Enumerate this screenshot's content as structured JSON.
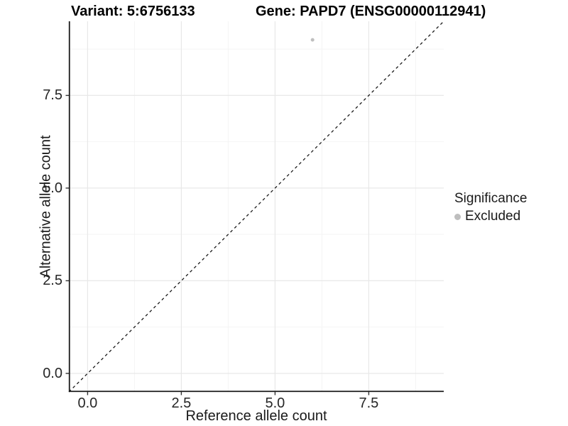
{
  "chart_data": {
    "type": "scatter",
    "title_left": "Variant: 5:6756133",
    "title_right": "Gene: PAPD7 (ENSG00000112941)",
    "xlabel": "Reference allele count",
    "ylabel": "Alternative allele count",
    "xlim": [
      -0.5,
      9.5
    ],
    "ylim": [
      -0.5,
      9.5
    ],
    "x_major_ticks": [
      0,
      2.5,
      5,
      7.5
    ],
    "y_major_ticks": [
      0,
      2.5,
      5,
      7.5
    ],
    "x_tick_labels": [
      "0.0",
      "2.5",
      "5.0",
      "7.5"
    ],
    "y_tick_labels": [
      "0.0",
      "2.5",
      "5.0",
      "7.5"
    ],
    "x_minor_ticks": [
      1.25,
      3.75,
      6.25,
      8.75
    ],
    "y_minor_ticks": [
      1.25,
      3.75,
      6.25,
      8.75
    ],
    "grid": "major+minor",
    "series": [
      {
        "name": "Excluded",
        "marker": "circle",
        "color": "#bfbfbf",
        "points": [
          {
            "x": 6,
            "y": 9
          }
        ]
      }
    ],
    "abline": {
      "slope": 1,
      "intercept": 0,
      "style": "dashed",
      "color": "#1a1a1a"
    },
    "legend": {
      "title": "Significance",
      "position": "right",
      "entries": [
        {
          "label": "Excluded",
          "color": "#bebebe",
          "marker": "circle"
        }
      ]
    }
  },
  "colors": {
    "background": "#ffffff",
    "grid_major": "#e8e8e8",
    "grid_minor": "#f4f4f4",
    "axis_line": "#1a1a1a",
    "tick_mark": "#333333",
    "axis_text": "#262626",
    "title_text": "#000000",
    "point": "#bfbfbf"
  }
}
